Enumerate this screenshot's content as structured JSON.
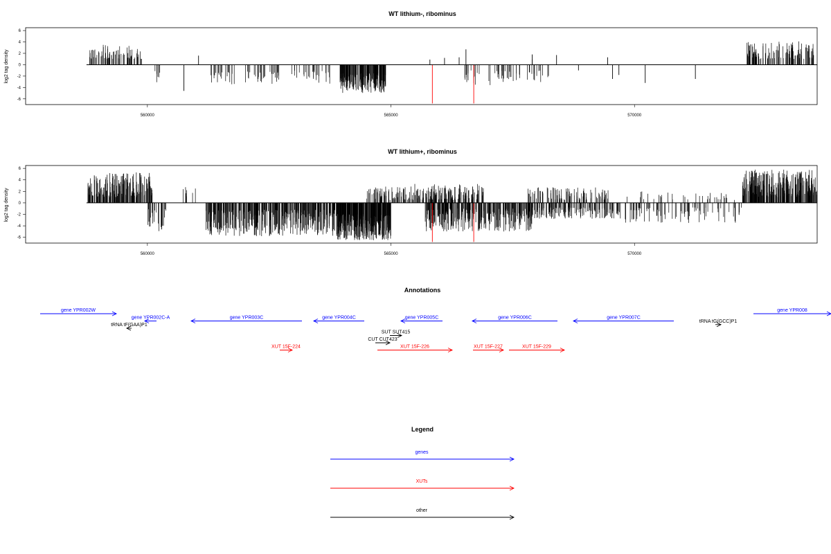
{
  "chart_data": [
    {
      "type": "bar",
      "title": "WT lithium-, ribominus",
      "ylabel": "log2 tag density",
      "xlim": [
        557500,
        573750
      ],
      "ylim": [
        -7,
        6.5
      ],
      "yticks": [
        6,
        4,
        2,
        0,
        -2,
        -4,
        -6
      ],
      "xticks": [
        560000,
        565000,
        570000
      ],
      "x_tick_labels": [
        "560000",
        "565000",
        "570000"
      ],
      "grid": false,
      "baseline": {
        "x_start": 558750,
        "x_end": 573750,
        "y": 0
      },
      "highlight_color": "#ff0000",
      "series_color": "#000000",
      "clusters": [
        {
          "x_start": 558780,
          "x_end": 559900,
          "sign": 1,
          "min": 1.0,
          "max": 3.5,
          "density": 0.09,
          "seed": 11
        },
        {
          "x_start": 560150,
          "x_end": 560320,
          "sign": -1,
          "min": 1.0,
          "max": 3.2,
          "density": 0.05,
          "seed": 12
        },
        {
          "x_start": 561300,
          "x_end": 562700,
          "sign": -1,
          "min": 1.2,
          "max": 3.5,
          "density": 0.05,
          "seed": 13
        },
        {
          "x_start": 562800,
          "x_end": 563900,
          "sign": -1,
          "min": 1.0,
          "max": 3.8,
          "density": 0.035,
          "seed": 14
        },
        {
          "x_start": 563950,
          "x_end": 564900,
          "sign": -1,
          "min": 1.5,
          "max": 5.0,
          "density": 0.3,
          "seed": 15
        },
        {
          "x_start": 566500,
          "x_end": 566850,
          "sign": -1,
          "min": 1.0,
          "max": 3.6,
          "density": 0.06,
          "seed": 16
        },
        {
          "x_start": 567000,
          "x_end": 568250,
          "sign": -1,
          "min": 1.0,
          "max": 3.6,
          "density": 0.045,
          "seed": 17
        },
        {
          "x_start": 572300,
          "x_end": 573700,
          "sign": 1,
          "min": 1.0,
          "max": 4.1,
          "density": 0.12,
          "seed": 18
        }
      ],
      "spikes": [
        [
          560750,
          -4.6
        ],
        [
          561050,
          1.6
        ],
        [
          565800,
          0.9
        ],
        [
          565850,
          -6.8,
          "red"
        ],
        [
          566100,
          1.2
        ],
        [
          566700,
          -6.8,
          "red"
        ],
        [
          566400,
          1.3
        ],
        [
          566540,
          2.7
        ],
        [
          567900,
          0.9
        ],
        [
          567900,
          1.8
        ],
        [
          568400,
          1.7
        ],
        [
          568850,
          -1.0
        ],
        [
          569450,
          1.3
        ],
        [
          569550,
          -2.5
        ],
        [
          569680,
          -1.8
        ],
        [
          570220,
          -3.2
        ],
        [
          571250,
          -2.5
        ]
      ]
    },
    {
      "type": "bar",
      "title": "WT lithium+, ribominus",
      "ylabel": "log2 tag density",
      "xlim": [
        557500,
        573750
      ],
      "ylim": [
        -7,
        6.5
      ],
      "yticks": [
        6,
        4,
        2,
        0,
        -2,
        -4,
        -6
      ],
      "xticks": [
        560000,
        565000,
        570000
      ],
      "x_tick_labels": [
        "560000",
        "565000",
        "570000"
      ],
      "grid": false,
      "baseline": {
        "x_start": 558750,
        "x_end": 573750,
        "y": 0
      },
      "highlight_color": "#ff0000",
      "series_color": "#000000",
      "clusters": [
        {
          "x_start": 558780,
          "x_end": 560100,
          "sign": 1,
          "min": 1.0,
          "max": 5.3,
          "density": 0.2,
          "seed": 21
        },
        {
          "x_start": 560000,
          "x_end": 560400,
          "sign": -1,
          "min": 1.0,
          "max": 5.0,
          "density": 0.08,
          "seed": 22
        },
        {
          "x_start": 560700,
          "x_end": 561100,
          "sign": 1,
          "min": 0.8,
          "max": 3.0,
          "density": 0.03,
          "seed": 23
        },
        {
          "x_start": 561200,
          "x_end": 563900,
          "sign": -1,
          "min": 1.2,
          "max": 5.8,
          "density": 0.2,
          "seed": 24
        },
        {
          "x_start": 563900,
          "x_end": 565000,
          "sign": -1,
          "min": 2.0,
          "max": 6.5,
          "density": 0.4,
          "seed": 25
        },
        {
          "x_start": 564500,
          "x_end": 565600,
          "sign": 1,
          "min": 0.5,
          "max": 3.3,
          "density": 0.12,
          "seed": 26
        },
        {
          "x_start": 565600,
          "x_end": 566900,
          "sign": 1,
          "min": 0.5,
          "max": 3.3,
          "density": 0.14,
          "seed": 27
        },
        {
          "x_start": 565700,
          "x_end": 567900,
          "sign": -1,
          "min": 1.0,
          "max": 5.0,
          "density": 0.2,
          "seed": 28
        },
        {
          "x_start": 567800,
          "x_end": 569500,
          "sign": 1,
          "min": 0.5,
          "max": 2.8,
          "density": 0.08,
          "seed": 29
        },
        {
          "x_start": 567900,
          "x_end": 569700,
          "sign": -1,
          "min": 0.8,
          "max": 2.8,
          "density": 0.12,
          "seed": 30
        },
        {
          "x_start": 569700,
          "x_end": 572200,
          "sign": -1,
          "min": 0.8,
          "max": 3.5,
          "density": 0.05,
          "seed": 31
        },
        {
          "x_start": 569800,
          "x_end": 572200,
          "sign": 1,
          "min": 0.5,
          "max": 2.0,
          "density": 0.02,
          "seed": 32
        },
        {
          "x_start": 572200,
          "x_end": 573750,
          "sign": 1,
          "min": 1.0,
          "max": 5.8,
          "density": 0.25,
          "seed": 33
        }
      ],
      "spikes": [
        [
          565850,
          -6.8,
          "red"
        ],
        [
          566700,
          -6.8,
          "red"
        ]
      ]
    }
  ],
  "annotations": {
    "title": "Annotations",
    "features": [
      {
        "label": "gene YPR002W",
        "color": "#0000ff",
        "dir": "right",
        "row": 0,
        "x1": 58,
        "x2": 168
      },
      {
        "label": "gene YPR002C-A",
        "color": "#0000ff",
        "dir": "left",
        "row": 1,
        "x1": 209,
        "x2": 226
      },
      {
        "label": "gene YPR003C",
        "color": "#0000ff",
        "dir": "left",
        "row": 1,
        "x1": 276,
        "x2": 436
      },
      {
        "label": "gene YPR004C",
        "color": "#0000ff",
        "dir": "left",
        "row": 1,
        "x1": 453,
        "x2": 526
      },
      {
        "label": "gene YPR005C",
        "color": "#0000ff",
        "dir": "left",
        "row": 1,
        "x1": 579,
        "x2": 639
      },
      {
        "label": "gene YPR006C",
        "color": "#0000ff",
        "dir": "left",
        "row": 1,
        "x1": 682,
        "x2": 805
      },
      {
        "label": "gene YPR007C",
        "color": "#0000ff",
        "dir": "left",
        "row": 1,
        "x1": 828,
        "x2": 973
      },
      {
        "label": "gene YPR008",
        "color": "#0000ff",
        "dir": "right",
        "row": 0,
        "x1": 1088,
        "x2": 1200
      },
      {
        "label": "tRNA tF(GAA)P1",
        "color": "#000000",
        "dir": "left",
        "row": 2,
        "x1": 183,
        "x2": 190
      },
      {
        "label": "tRNA tG(GCC)P1",
        "color": "#000000",
        "dir": "right",
        "row": 1.5,
        "x1": 1033,
        "x2": 1041
      },
      {
        "label": "SUT SUT415",
        "color": "#000000",
        "dir": "right",
        "row": 3,
        "x1": 563,
        "x2": 580
      },
      {
        "label": "CUT CUT423",
        "color": "#000000",
        "dir": "right",
        "row": 4,
        "x1": 542,
        "x2": 563
      },
      {
        "label": "XUT 15F-224",
        "color": "#ff0000",
        "dir": "right",
        "row": 5,
        "x1": 404,
        "x2": 422
      },
      {
        "label": "XUT 15F-226",
        "color": "#ff0000",
        "dir": "right",
        "row": 5,
        "x1": 545,
        "x2": 653
      },
      {
        "label": "XUT 15F-227",
        "color": "#ff0000",
        "dir": "right",
        "row": 5,
        "x1": 683,
        "x2": 727
      },
      {
        "label": "XUT 15F-229",
        "color": "#ff0000",
        "dir": "right",
        "row": 5,
        "x1": 735,
        "x2": 815
      }
    ]
  },
  "legend": {
    "title": "Legend",
    "items": [
      {
        "label": "genes",
        "color": "#0000ff"
      },
      {
        "label": "XUTs",
        "color": "#ff0000"
      },
      {
        "label": "other",
        "color": "#000000"
      }
    ]
  }
}
